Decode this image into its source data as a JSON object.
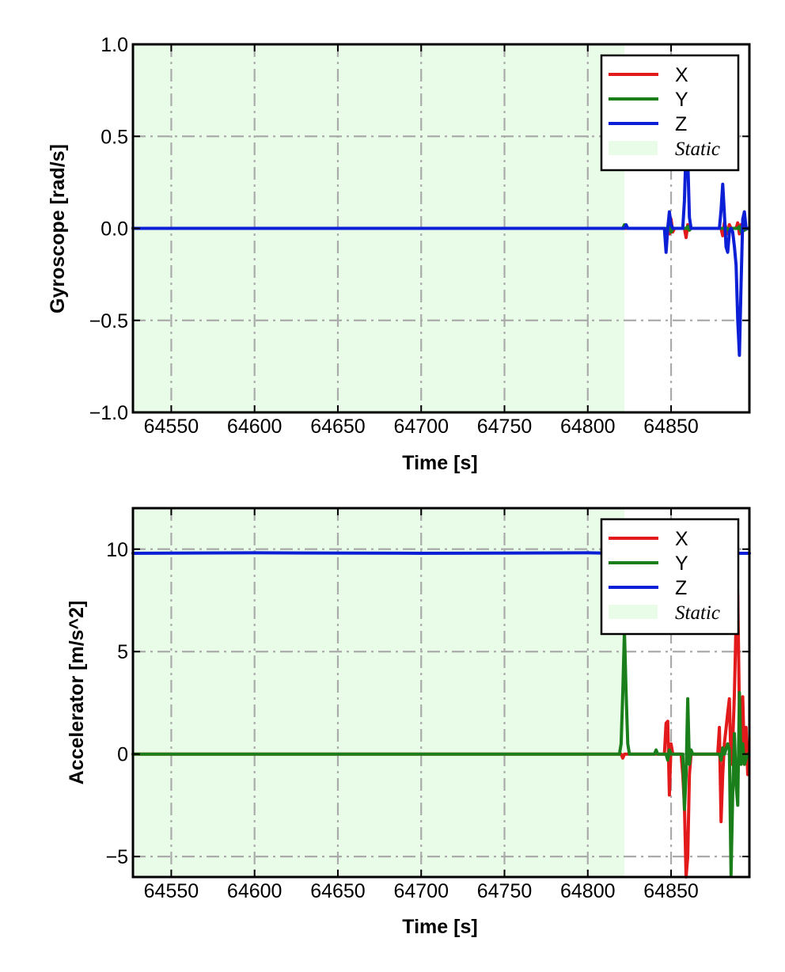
{
  "chart_data": [
    {
      "type": "line",
      "title": "",
      "xlabel": "Time [s]",
      "ylabel": "Gyroscope [rad/s]",
      "xlim": [
        64527,
        64897
      ],
      "ylim": [
        -1.0,
        1.0
      ],
      "xticks": [
        64550,
        64600,
        64650,
        64700,
        64750,
        64800,
        64850
      ],
      "yticks": [
        -1.0,
        -0.5,
        0.0,
        0.5,
        1.0
      ],
      "xtick_labels": [
        "64550",
        "64600",
        "64650",
        "64700",
        "64750",
        "64800",
        "64850"
      ],
      "ytick_labels": [
        "−1.0",
        "−0.5",
        "0.0",
        "0.5",
        "1.0"
      ],
      "grid": true,
      "legend_position": "top-right",
      "static_region": {
        "name": "Static",
        "x_start": 64527,
        "x_end": 64822,
        "color": "#e8fce8"
      },
      "series": [
        {
          "name": "X",
          "color": "#e31a1c",
          "x": [
            64527,
            64822,
            64848,
            64849,
            64850,
            64851,
            64852,
            64858,
            64859,
            64860,
            64861,
            64880,
            64881,
            64882,
            64884,
            64885,
            64886,
            64889,
            64890,
            64891,
            64892,
            64894,
            64896
          ],
          "y": [
            0,
            0,
            0,
            -0.03,
            0.05,
            -0.02,
            0,
            0,
            -0.05,
            0.02,
            0,
            0,
            -0.04,
            0.03,
            -0.03,
            0.02,
            0,
            0,
            0.03,
            -0.03,
            0.02,
            0,
            0
          ]
        },
        {
          "name": "Y",
          "color": "#1a7f1a",
          "x": [
            64527,
            64821,
            64822,
            64823,
            64824,
            64848,
            64849,
            64850,
            64851,
            64859,
            64860,
            64861,
            64862,
            64884,
            64885,
            64886,
            64890,
            64891,
            64892,
            64896
          ],
          "y": [
            0,
            0,
            0.02,
            0.01,
            0,
            0,
            0.02,
            -0.02,
            0,
            0,
            0.01,
            -0.01,
            0,
            0,
            -0.02,
            0,
            0,
            0.01,
            -0.02,
            0
          ]
        },
        {
          "name": "Z",
          "color": "#0b1fd6",
          "x": [
            64527,
            64822,
            64823,
            64824,
            64846,
            64847,
            64848,
            64849,
            64850,
            64851,
            64852,
            64857,
            64858,
            64859,
            64860,
            64861,
            64862,
            64863,
            64879,
            64880,
            64881,
            64882,
            64883,
            64884,
            64885,
            64886,
            64887,
            64888,
            64889,
            64890,
            64891,
            64892,
            64893,
            64894,
            64895,
            64896
          ],
          "y": [
            0,
            0,
            0.02,
            0,
            0,
            -0.13,
            0,
            0.09,
            0.02,
            0,
            0,
            0,
            0.15,
            0.45,
            0.38,
            0.06,
            0,
            0,
            0,
            0.1,
            0.24,
            0.08,
            -0.1,
            -0.13,
            -0.02,
            0,
            -0.02,
            -0.1,
            -0.2,
            -0.5,
            -0.69,
            -0.3,
            0.05,
            0.09,
            0,
            0
          ]
        }
      ]
    },
    {
      "type": "line",
      "title": "",
      "xlabel": "Time [s]",
      "ylabel": "Accelerator [m/s^2]",
      "xlim": [
        64527,
        64897
      ],
      "ylim": [
        -6.0,
        12.0
      ],
      "xticks": [
        64550,
        64600,
        64650,
        64700,
        64750,
        64800,
        64850
      ],
      "yticks": [
        -5,
        0,
        5,
        10
      ],
      "xtick_labels": [
        "64550",
        "64600",
        "64650",
        "64700",
        "64750",
        "64800",
        "64850"
      ],
      "ytick_labels": [
        "−5",
        "0",
        "5",
        "10"
      ],
      "grid": true,
      "legend_position": "top-right",
      "static_region": {
        "name": "Static",
        "x_start": 64527,
        "x_end": 64822,
        "color": "#e8fce8"
      },
      "series": [
        {
          "name": "X",
          "color": "#e31a1c",
          "x": [
            64527,
            64820,
            64821,
            64822,
            64846,
            64847,
            64848,
            64849,
            64850,
            64851,
            64856,
            64857,
            64858,
            64859,
            64860,
            64861,
            64862,
            64878,
            64879,
            64880,
            64881,
            64882,
            64884,
            64885,
            64886,
            64887,
            64888,
            64889,
            64890,
            64891,
            64892,
            64893,
            64894,
            64895,
            64896
          ],
          "y": [
            0,
            0,
            -0.2,
            0,
            0,
            1.5,
            1.6,
            -2.0,
            0.5,
            0,
            0,
            -1.0,
            -2.5,
            -6.0,
            -5.0,
            -1.0,
            0,
            0,
            1.3,
            -3.3,
            -1.0,
            0.5,
            2.0,
            2.7,
            -0.5,
            0.5,
            3.0,
            6.5,
            7.8,
            2.0,
            0.5,
            2.8,
            -0.5,
            1.3,
            -1.0
          ]
        },
        {
          "name": "Y",
          "color": "#1a7f1a",
          "x": [
            64527,
            64819,
            64820,
            64821,
            64822,
            64823,
            64824,
            64825,
            64840,
            64841,
            64842,
            64847,
            64848,
            64849,
            64850,
            64857,
            64858,
            64859,
            64860,
            64861,
            64862,
            64863,
            64879,
            64880,
            64881,
            64882,
            64884,
            64885,
            64886,
            64887,
            64888,
            64889,
            64890,
            64891,
            64892,
            64893,
            64894,
            64896
          ],
          "y": [
            0,
            0,
            0.5,
            3.0,
            6.0,
            3.0,
            0.5,
            0,
            0,
            0.2,
            0,
            0,
            -0.3,
            0.2,
            0,
            0,
            -2.7,
            -1.0,
            2.7,
            -0.5,
            0.2,
            0,
            0,
            -0.3,
            0.3,
            0,
            0.5,
            0.2,
            -5.9,
            -2.0,
            1.0,
            -1.5,
            -2.5,
            3.0,
            -0.5,
            0.5,
            -0.5,
            0
          ]
        },
        {
          "name": "Z",
          "color": "#0b1fd6",
          "x": [
            64527,
            64600,
            64700,
            64800,
            64820,
            64897
          ],
          "y": [
            9.8,
            9.82,
            9.8,
            9.82,
            9.8,
            9.8
          ]
        }
      ]
    }
  ]
}
